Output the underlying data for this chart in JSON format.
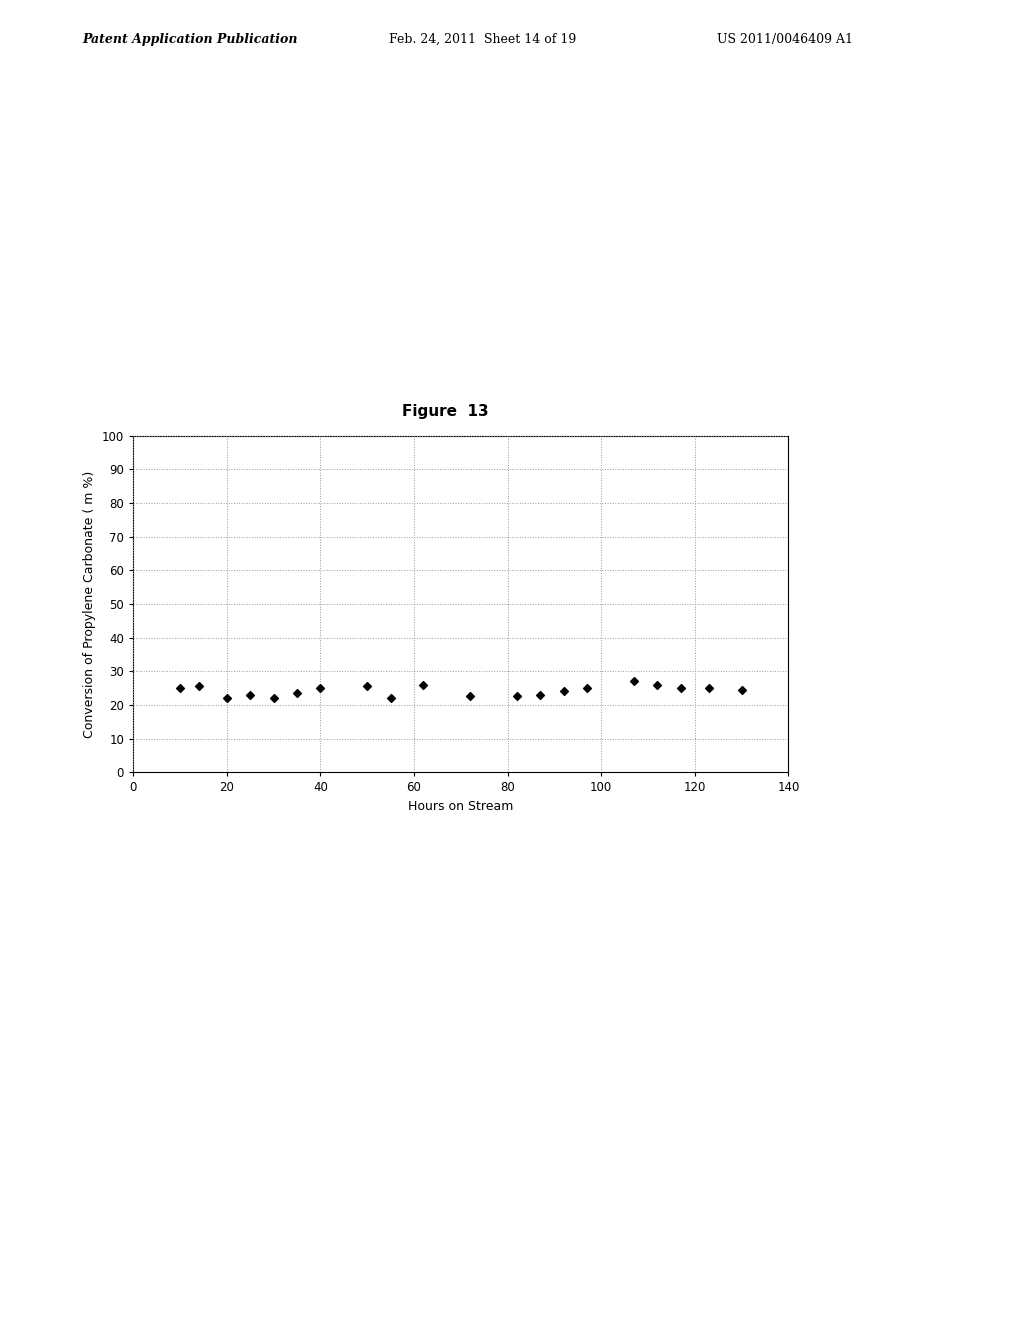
{
  "title": "Figure  13",
  "xlabel": "Hours on Stream",
  "ylabel": "Conversion of Propylene Carbonate ( m %)",
  "xlim": [
    0,
    140
  ],
  "ylim": [
    0,
    100
  ],
  "xticks": [
    0,
    20,
    40,
    60,
    80,
    100,
    120,
    140
  ],
  "yticks": [
    0,
    10,
    20,
    30,
    40,
    50,
    60,
    70,
    80,
    90,
    100
  ],
  "data_x": [
    10,
    14,
    20,
    25,
    30,
    35,
    40,
    50,
    55,
    62,
    72,
    82,
    87,
    92,
    97,
    107,
    112,
    117,
    123,
    130
  ],
  "data_y": [
    25,
    25.5,
    22,
    23,
    22,
    23.5,
    25,
    25.5,
    22,
    26,
    22.5,
    22.5,
    23,
    24,
    25,
    27,
    26,
    25,
    25,
    24.5
  ],
  "marker": "D",
  "marker_color": "black",
  "marker_size": 4,
  "grid_color": "#999999",
  "background_color": "white",
  "figure_title_fontsize": 11,
  "axis_label_fontsize": 9,
  "tick_fontsize": 8.5,
  "header_left": "Patent Application Publication",
  "header_center": "Feb. 24, 2011  Sheet 14 of 19",
  "header_right": "US 2011/0046409 A1"
}
